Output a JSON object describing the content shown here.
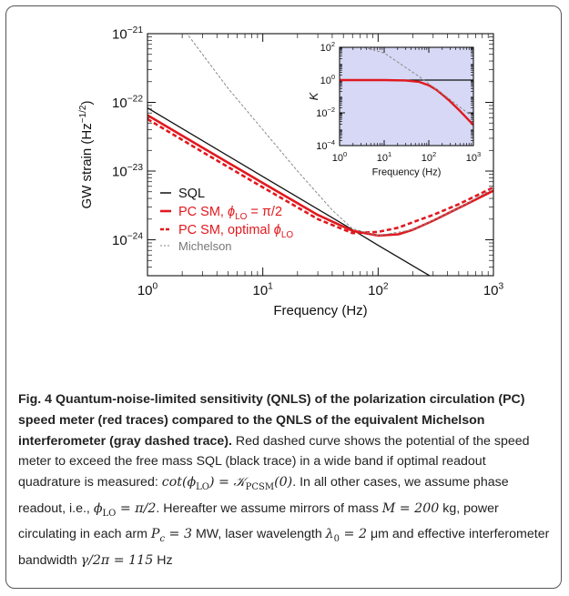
{
  "chart_data": [
    {
      "type": "line",
      "xlabel": "Frequency (Hz)",
      "ylabel": "GW strain (Hz",
      "ylabel_exp": "−1/2",
      "ylabel_close": ")",
      "xscale": "log",
      "yscale": "log",
      "xlim": [
        1,
        1000
      ],
      "ylim": [
        3e-25,
        1e-21
      ],
      "x_ticks": [
        {
          "base": "10",
          "exp": "0"
        },
        {
          "base": "10",
          "exp": "1"
        },
        {
          "base": "10",
          "exp": "2"
        },
        {
          "base": "10",
          "exp": "3"
        }
      ],
      "y_ticks": [
        {
          "base": "10",
          "exp": "−24"
        },
        {
          "base": "10",
          "exp": "−23"
        },
        {
          "base": "10",
          "exp": "−22"
        },
        {
          "base": "10",
          "exp": "−21"
        }
      ],
      "grid": false,
      "legend_position": "bottom-left",
      "series": [
        {
          "name": "SQL",
          "color": "#111111",
          "style": "solid",
          "x": [
            1,
            10,
            60,
            100,
            300
          ],
          "y": [
            8.3e-23,
            8.3e-24,
            1.4e-24,
            8.3e-25,
            2.8e-25
          ]
        },
        {
          "name_prefix": "PC SM, ",
          "name_symbol": "ϕ",
          "name_sub": "LO",
          "name_suffix": " = π/2",
          "color": "#e0191f",
          "style": "solid",
          "x": [
            1,
            3,
            10,
            30,
            60,
            100,
            150,
            200,
            300,
            500,
            1000
          ],
          "y": [
            6.5e-23,
            2.2e-23,
            6.7e-24,
            2.3e-24,
            1.35e-24,
            1.15e-24,
            1.2e-24,
            1.4e-24,
            1.9e-24,
            2.9e-24,
            5.2e-24
          ]
        },
        {
          "name_prefix": "PC SM, optimal ",
          "name_symbol": "ϕ",
          "name_sub": "LO",
          "color": "#e0191f",
          "style": "dashed",
          "x": [
            1,
            3,
            10,
            30,
            60,
            100,
            150,
            200,
            300,
            500,
            1000
          ],
          "y": [
            5.7e-23,
            1.9e-23,
            5.8e-24,
            2e-24,
            1.25e-24,
            1.3e-24,
            1.5e-24,
            1.8e-24,
            2.3e-24,
            3.3e-24,
            5.8e-24
          ]
        },
        {
          "name": "Michelson",
          "color": "#8a8a8a",
          "style": "dashed",
          "x": [
            1,
            2.2,
            5,
            10,
            20,
            40,
            60,
            100,
            200,
            500,
            1000
          ],
          "y": [
            1e-20,
            1e-21,
            1.6e-22,
            4e-23,
            1e-23,
            2.7e-24,
            1.45e-24,
            1.15e-24,
            1.4e-24,
            2.9e-24,
            5.6e-24
          ]
        }
      ]
    },
    {
      "type": "line",
      "inset": true,
      "xlabel": "Frequency (Hz)",
      "ylabel": "K",
      "xscale": "log",
      "yscale": "log",
      "xlim": [
        1,
        1000
      ],
      "ylim": [
        0.0001,
        100
      ],
      "x_ticks": [
        {
          "base": "10",
          "exp": "0"
        },
        {
          "base": "10",
          "exp": "1"
        },
        {
          "base": "10",
          "exp": "2"
        },
        {
          "base": "10",
          "exp": "3"
        }
      ],
      "y_ticks": [
        {
          "base": "10",
          "exp": "−4"
        },
        {
          "base": "10",
          "exp": "−2"
        },
        {
          "base": "10",
          "exp": "0"
        },
        {
          "base": "10",
          "exp": "2"
        }
      ],
      "background": "#d6d8f5",
      "series": [
        {
          "color": "#111111",
          "style": "solid",
          "x": [
            1,
            1000
          ],
          "y": [
            1,
            1
          ]
        },
        {
          "color": "#e0191f",
          "style": "solid",
          "x": [
            1,
            10,
            30,
            60,
            100,
            150,
            200,
            300,
            500,
            1000
          ],
          "y": [
            1,
            1,
            0.95,
            0.78,
            0.48,
            0.25,
            0.13,
            0.05,
            0.013,
            0.0018
          ]
        },
        {
          "color": "#8a8a8a",
          "style": "dashed",
          "x": [
            3.5,
            10,
            30,
            60,
            100,
            150,
            200,
            300,
            500,
            1000
          ],
          "y": [
            100,
            45,
            6,
            1.7,
            0.6,
            0.27,
            0.15,
            0.065,
            0.022,
            0.0055
          ]
        }
      ]
    }
  ],
  "caption": {
    "label": "Fig. 4",
    "title": "Quantum-noise-limited sensitivity (QNLS) of the polarization circulation (PC) speed meter (red traces) compared to the QNLS of the equivalent Michelson interferometer (gray dashed trace).",
    "text1": "Red dashed curve shows the potential of the speed meter to exceed the free mass SQL (black trace) in a wide band if optimal readout quadrature is measured:",
    "eq1": "cot(ϕ",
    "eq1_sub": "LO",
    "eq1_mid": ") = 𝒦",
    "eq1_sub2": "PCSM",
    "eq1_end": "(0)",
    "text2": ". In all other cases, we assume phase readout, i.e.,",
    "eq2": "ϕ",
    "eq2_sub": "LO",
    "eq2_end": " = π/2",
    "text3": ". Hereafter we assume mirrors of mass",
    "eq3": "M = 200",
    "text4": "kg, power circulating in each arm",
    "eq4": "P",
    "eq4_sub": "c",
    "eq4_end": " = 3",
    "text5": "MW, laser wavelength",
    "eq5": "λ",
    "eq5_sub": "0",
    "eq5_end": " = 2",
    "text6": "μm and effective interferometer bandwidth",
    "eq6": "γ/2π = 115",
    "text7": "Hz"
  }
}
